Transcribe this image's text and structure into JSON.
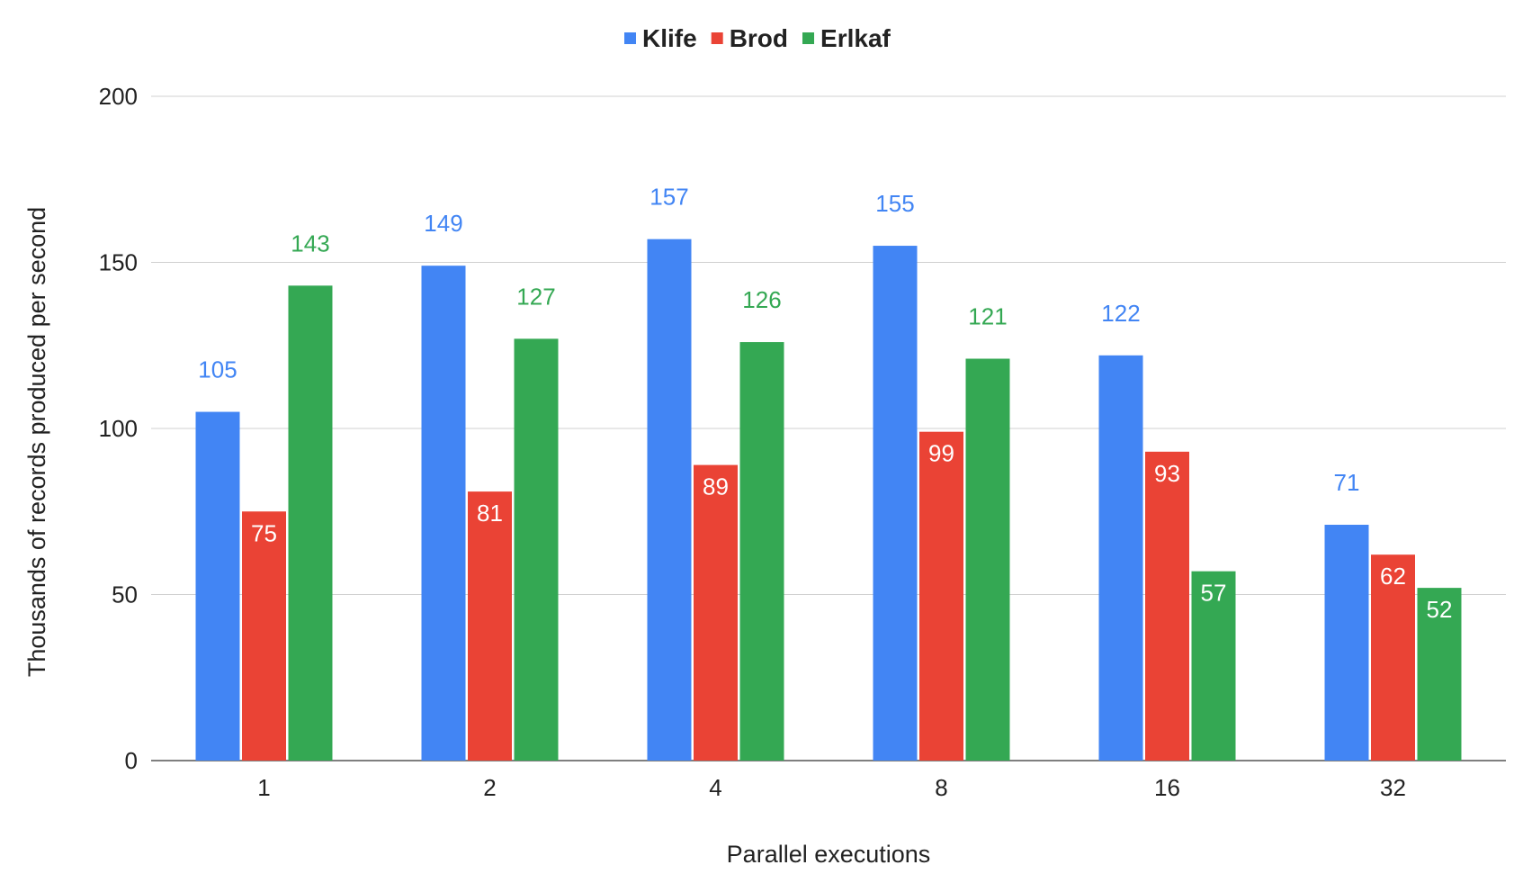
{
  "chart_data": {
    "type": "bar",
    "title": "",
    "xlabel": "Parallel executions",
    "ylabel": "Thousands of records produced per second",
    "categories": [
      "1",
      "2",
      "4",
      "8",
      "16",
      "32"
    ],
    "series": [
      {
        "name": "Klife",
        "color": "#4285f4",
        "values": [
          105,
          149,
          157,
          155,
          122,
          71
        ]
      },
      {
        "name": "Brod",
        "color": "#ea4335",
        "values": [
          75,
          81,
          89,
          99,
          93,
          62
        ]
      },
      {
        "name": "Erlkaf",
        "color": "#34a853",
        "values": [
          143,
          127,
          126,
          121,
          57,
          52
        ]
      }
    ],
    "ylim": [
      0,
      200
    ],
    "yticks": [
      0,
      50,
      100,
      150,
      200
    ],
    "grid": true,
    "legend_position": "top-center"
  }
}
